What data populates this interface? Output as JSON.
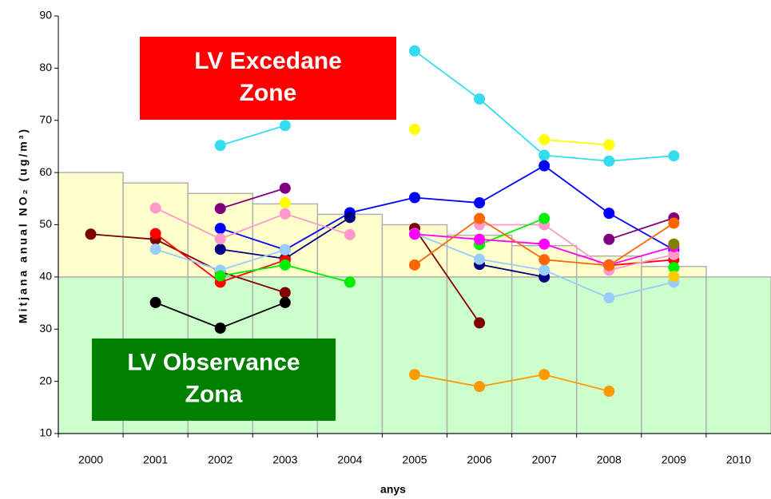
{
  "chart_data": {
    "type": "line",
    "x_label": "anys",
    "y_label": "Mitjana anual NO₂ (ug/m³)",
    "categories": [
      "2000",
      "2001",
      "2002",
      "2003",
      "2004",
      "2005",
      "2006",
      "2007",
      "2008",
      "2009",
      "2010"
    ],
    "ylim": [
      10,
      90
    ],
    "yticks": [
      10,
      20,
      30,
      40,
      50,
      60,
      70,
      80,
      90
    ],
    "background_bars": [
      {
        "color": "#ccffcc",
        "values": [
          40,
          40,
          40,
          40,
          40,
          40,
          40,
          40,
          40,
          40,
          40
        ]
      },
      {
        "color": "#ffffcc",
        "values": [
          20,
          18,
          16,
          14,
          12,
          10,
          8,
          6,
          4,
          2,
          0
        ]
      }
    ],
    "annotations": [
      {
        "lines": [
          "LV Excedane",
          "Zone"
        ],
        "color": "#ff0000"
      },
      {
        "lines": [
          "LV Observance",
          "Zona"
        ],
        "color": "#008000"
      }
    ],
    "series": [
      {
        "color": "#33ddee",
        "values": [
          null,
          null,
          65.2,
          69,
          null,
          83.3,
          74.1,
          63.3,
          62.2,
          63.2,
          null
        ]
      },
      {
        "color": "#ffff00",
        "values": [
          null,
          null,
          null,
          54.2,
          null,
          68.3,
          null,
          66.3,
          65.3,
          null,
          null
        ]
      },
      {
        "color": "#0000ff",
        "values": [
          null,
          null,
          49.3,
          45.2,
          52.3,
          55.2,
          54.2,
          61.3,
          52.2,
          45.2,
          null
        ]
      },
      {
        "color": "#000080",
        "values": [
          null,
          null,
          45.3,
          43.5,
          51.4,
          null,
          42.4,
          40,
          null,
          null,
          null
        ]
      },
      {
        "color": "#800000",
        "values": [
          48.2,
          47.2,
          41,
          37,
          null,
          49.3,
          31.2,
          null,
          null,
          null,
          null
        ]
      },
      {
        "color": "#ff0000",
        "values": [
          null,
          48.3,
          39,
          43.2,
          null,
          null,
          null,
          null,
          42.2,
          43.3,
          null
        ]
      },
      {
        "color": "#000000",
        "values": [
          null,
          35.1,
          30.2,
          35.1,
          null,
          null,
          null,
          null,
          null,
          null,
          null
        ]
      },
      {
        "color": "#800080",
        "values": [
          null,
          null,
          53.1,
          57,
          null,
          null,
          null,
          null,
          47.2,
          51.3,
          null
        ]
      },
      {
        "color": "#ff99cc",
        "values": [
          null,
          53.2,
          47.3,
          52.1,
          48.1,
          null,
          50,
          50,
          41.3,
          44.3,
          null
        ]
      },
      {
        "color": "#99ccff",
        "values": [
          null,
          45.3,
          41.3,
          45.2,
          null,
          48.3,
          43.4,
          41.3,
          36,
          39,
          null
        ]
      },
      {
        "color": "#00ee00",
        "values": [
          null,
          null,
          40.2,
          42.3,
          39,
          null,
          46.2,
          51.2,
          null,
          41.8,
          null
        ]
      },
      {
        "color": "#ff00ff",
        "values": [
          null,
          null,
          null,
          null,
          null,
          48.2,
          47.2,
          46.3,
          42.3,
          45.8,
          null
        ]
      },
      {
        "color": "#ff6600",
        "values": [
          null,
          null,
          null,
          null,
          null,
          42.3,
          51.2,
          43.3,
          42.2,
          50.3,
          null
        ]
      },
      {
        "color": "#ff9900",
        "values": [
          null,
          null,
          null,
          null,
          null,
          21.3,
          19,
          21.3,
          18.1,
          null,
          null
        ]
      },
      {
        "color": "#808000",
        "values": [
          null,
          null,
          null,
          null,
          null,
          null,
          null,
          null,
          null,
          46.3,
          null
        ]
      },
      {
        "color": "#ffcc00",
        "values": [
          null,
          null,
          null,
          null,
          null,
          null,
          null,
          null,
          null,
          40.1,
          null
        ]
      }
    ]
  }
}
